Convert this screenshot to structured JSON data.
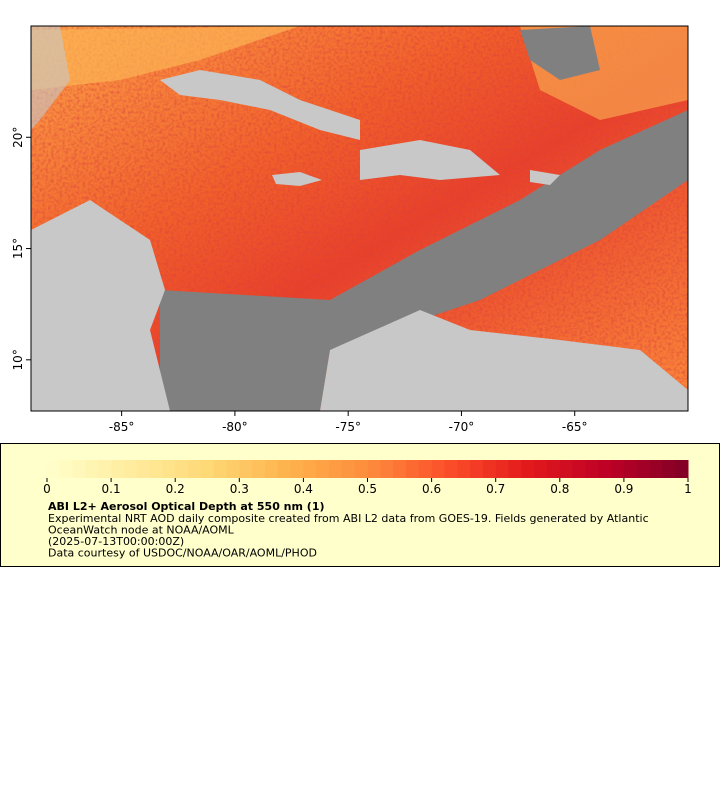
{
  "map": {
    "xlim": [
      -89,
      -60
    ],
    "ylim": [
      7.7,
      25
    ],
    "xticks": [
      {
        "value": -85,
        "label": "-85°"
      },
      {
        "value": -80,
        "label": "-80°"
      },
      {
        "value": -75,
        "label": "-75°"
      },
      {
        "value": -70,
        "label": "-70°"
      },
      {
        "value": -65,
        "label": "-65°"
      }
    ],
    "yticks": [
      {
        "value": 10,
        "label": "10°"
      },
      {
        "value": 15,
        "label": "15°"
      },
      {
        "value": 20,
        "label": "20°"
      }
    ]
  },
  "colorbar": {
    "range": [
      0,
      1
    ],
    "ticks": [
      0,
      0.1,
      0.2,
      0.3,
      0.4,
      0.5,
      0.6,
      0.7,
      0.8,
      0.9,
      1
    ]
  },
  "legend": {
    "title": "ABI L2+ Aerosol Optical Depth at 550 nm (1)",
    "lines": [
      "Experimental NRT AOD daily composite created from ABI L2 data from GOES-19. Fields generated by Atlantic",
      "OceanWatch node at NOAA/AOML",
      "(2025-07-13T00:00:00Z)",
      "Data courtesy of USDOC/NOAA/OAR/AOML/PHOD"
    ]
  }
}
